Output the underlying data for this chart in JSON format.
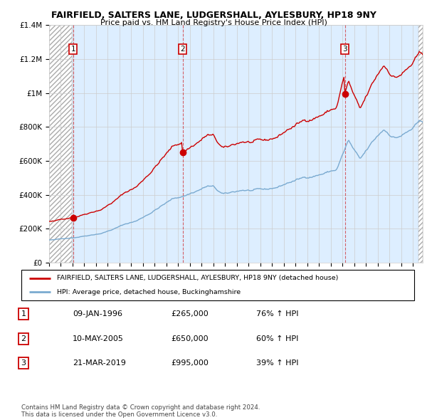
{
  "title": "FAIRFIELD, SALTERS LANE, LUDGERSHALL, AYLESBURY, HP18 9NY",
  "subtitle": "Price paid vs. HM Land Registry's House Price Index (HPI)",
  "legend_line1": "FAIRFIELD, SALTERS LANE, LUDGERSHALL, AYLESBURY, HP18 9NY (detached house)",
  "legend_line2": "HPI: Average price, detached house, Buckinghamshire",
  "sale1_date": "09-JAN-1996",
  "sale1_price": 265000,
  "sale1_hpi": "76% ↑ HPI",
  "sale2_date": "10-MAY-2005",
  "sale2_price": 650000,
  "sale2_hpi": "60% ↑ HPI",
  "sale3_date": "21-MAR-2019",
  "sale3_price": 995000,
  "sale3_hpi": "39% ↑ HPI",
  "footer": "Contains HM Land Registry data © Crown copyright and database right 2024.\nThis data is licensed under the Open Government Licence v3.0.",
  "red_color": "#cc0000",
  "blue_color": "#7aaad0",
  "hatch_color": "#aaaaaa",
  "grid_color": "#cccccc",
  "bg_color": "#ddeeff",
  "ylim": [
    0,
    1400000
  ],
  "xlim_start": 1994.0,
  "xlim_end": 2025.84
}
